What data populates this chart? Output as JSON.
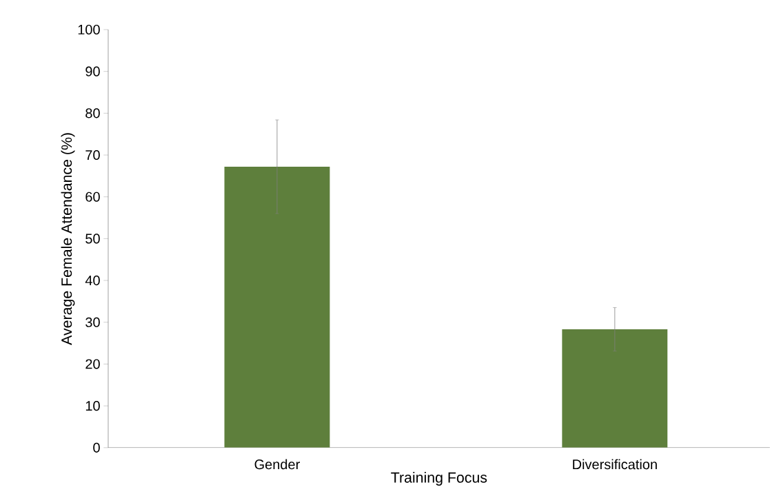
{
  "chart_data": {
    "type": "bar",
    "xlabel": "Training Focus",
    "ylabel": "Average Female Attendance (%)",
    "categories": [
      "Gender",
      "Diversification"
    ],
    "values": [
      67.2,
      28.3
    ],
    "errors": [
      11.2,
      5.2
    ],
    "color": "#5e7f3c",
    "ylim": [
      0,
      100
    ],
    "yticks": [
      0,
      10,
      20,
      30,
      40,
      50,
      60,
      70,
      80,
      90,
      100
    ],
    "grid": false
  }
}
